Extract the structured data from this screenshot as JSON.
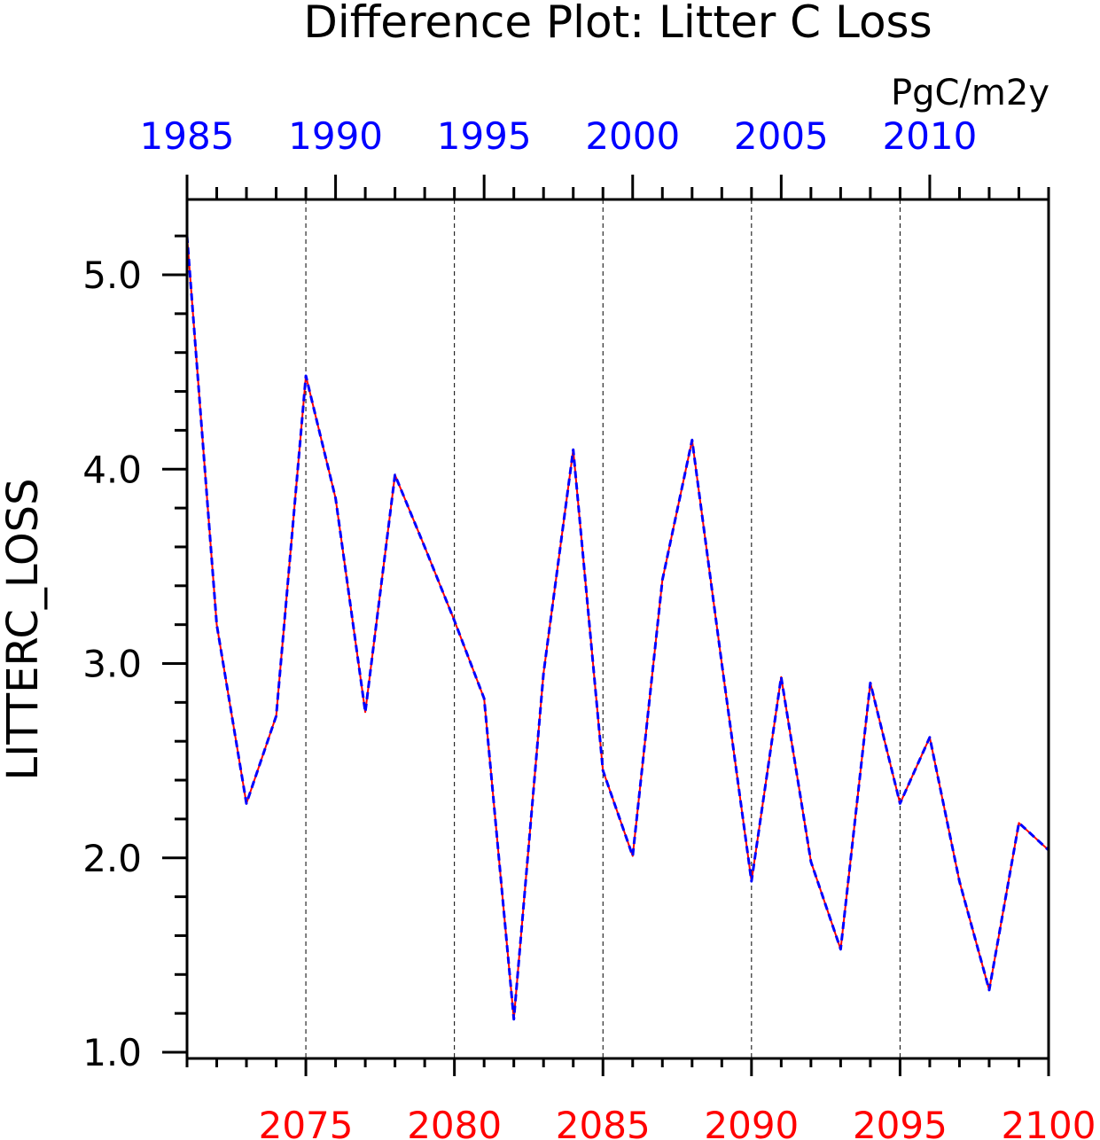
{
  "chart_data": {
    "type": "line",
    "title": "Difference Plot: Litter C Loss",
    "units": "PgC/m2y",
    "ylabel": "LITTERC_LOSS",
    "ylim": [
      0.95,
      5.4
    ],
    "y_ticks": [
      "1.0",
      "2.0",
      "3.0",
      "4.0",
      "5.0"
    ],
    "grid": "vertical dashed lines at bottom-axis major ticks",
    "bottom_axis": {
      "color": "#ff0000",
      "range": [
        2071,
        2100
      ],
      "tick_labels": [
        "2075",
        "2080",
        "2085",
        "2090",
        "2095",
        "2100"
      ]
    },
    "top_axis": {
      "color": "#0000ff",
      "range": [
        1985,
        2014
      ],
      "tick_labels": [
        "1985",
        "1990",
        "1995",
        "2000",
        "2005",
        "2010"
      ]
    },
    "series": [
      {
        "color": "#ff0000",
        "style": "solid",
        "x": [
          2071,
          2072,
          2073,
          2074,
          2075,
          2076,
          2077,
          2078,
          2079,
          2080,
          2081,
          2082,
          2083,
          2084,
          2085,
          2086,
          2087,
          2088,
          2089,
          2090,
          2091,
          2092,
          2093,
          2094,
          2095,
          2096,
          2097,
          2098,
          2099,
          2100
        ],
        "values": [
          5.2,
          3.2,
          2.28,
          2.73,
          4.48,
          3.85,
          2.75,
          3.97,
          3.6,
          3.22,
          2.82,
          1.17,
          2.95,
          4.1,
          2.45,
          2.01,
          3.43,
          4.15,
          3.0,
          1.88,
          2.93,
          1.98,
          1.53,
          2.9,
          2.28,
          2.62,
          1.88,
          1.32,
          2.18,
          2.04
        ]
      },
      {
        "color": "#0000ff",
        "style": "dashed",
        "x": [
          1985,
          1986,
          1987,
          1988,
          1989,
          1990,
          1991,
          1992,
          1993,
          1994,
          1995,
          1996,
          1997,
          1998,
          1999,
          2000,
          2001,
          2002,
          2003,
          2004,
          2005,
          2006,
          2007,
          2008,
          2009,
          2010,
          2011,
          2012,
          2013,
          2014
        ],
        "values": [
          5.2,
          3.2,
          2.28,
          2.73,
          4.48,
          3.85,
          2.75,
          3.97,
          3.6,
          3.22,
          2.82,
          1.17,
          2.95,
          4.1,
          2.45,
          2.01,
          3.43,
          4.15,
          3.0,
          1.88,
          2.93,
          1.98,
          1.53,
          2.9,
          2.28,
          2.62,
          1.88,
          1.32,
          2.18,
          2.04
        ]
      }
    ]
  }
}
